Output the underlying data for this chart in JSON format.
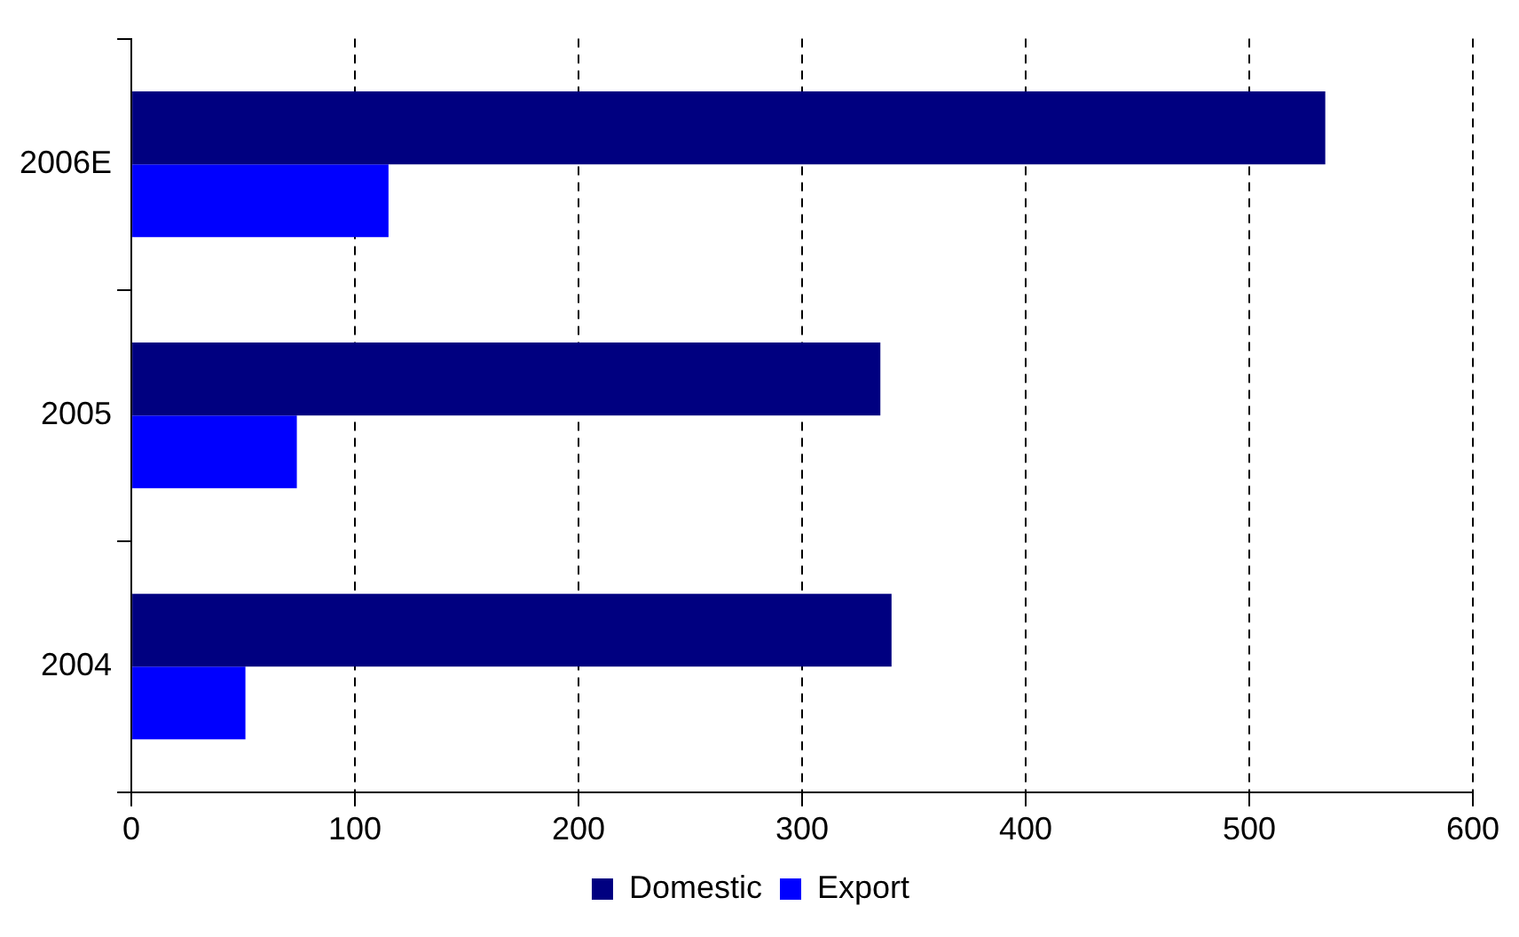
{
  "chart_data": {
    "type": "bar",
    "orientation": "horizontal",
    "categories": [
      "2006E",
      "2005",
      "2004"
    ],
    "series": [
      {
        "name": "Domestic",
        "color": "#000080",
        "values": [
          534,
          335,
          340
        ]
      },
      {
        "name": "Export",
        "color": "#0000ff",
        "values": [
          115,
          74,
          51
        ]
      }
    ],
    "xlim": [
      0,
      600
    ],
    "xticks": [
      0,
      100,
      200,
      300,
      400,
      500,
      600
    ],
    "grid": "x",
    "line_style": "dashed",
    "legend": "bottom"
  }
}
